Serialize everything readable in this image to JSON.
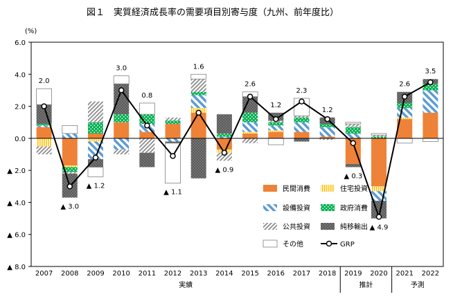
{
  "chart_data": {
    "type": "bar",
    "title": "図１　実質経済成長率の需要項目別寄与度（九州、前年度比）",
    "ylabel": "(%)",
    "ylim": [
      -8,
      6
    ],
    "yticks": [
      6,
      4,
      2,
      0,
      -2,
      -4,
      -6,
      -8
    ],
    "yticklabels": [
      "6.0",
      "4.0",
      "2.0",
      "0.0",
      "▲ 2.0",
      "▲ 4.0",
      "▲ 6.0",
      "▲ 8.0"
    ],
    "grid": false,
    "legend_position": "lower-right inside plot",
    "categories": [
      "2007",
      "2008",
      "2009",
      "2010",
      "2011",
      "2012",
      "2013",
      "2014",
      "2015",
      "2016",
      "2017",
      "2018",
      "2019",
      "2020",
      "2021",
      "2022"
    ],
    "groups": [
      {
        "label": "実績",
        "from": "2007",
        "to": "2018"
      },
      {
        "label": "推計",
        "from": "2019",
        "to": "2020"
      },
      {
        "label": "予測",
        "from": "2021",
        "to": "2022"
      }
    ],
    "series": [
      {
        "name": "民間消費",
        "key": "private",
        "color": "#ED7D31",
        "values": [
          0.7,
          -1.7,
          0.3,
          1.0,
          0.4,
          0.9,
          1.6,
          -0.7,
          0.3,
          0.4,
          0.4,
          0.1,
          -1.6,
          -3.0,
          1.2,
          1.6
        ]
      },
      {
        "name": "住宅投資",
        "key": "housing",
        "color": "#FFC000",
        "values": [
          -0.5,
          -0.1,
          -0.2,
          0.0,
          0.0,
          0.0,
          0.3,
          -0.2,
          0.1,
          0.1,
          0.0,
          0.0,
          0.0,
          -0.3,
          0.1,
          0.0
        ]
      },
      {
        "name": "設備投資",
        "key": "equipment",
        "color": "#5B9BD5",
        "values": [
          0.1,
          0.3,
          -1.1,
          -0.7,
          0.5,
          -0.2,
          0.8,
          0.1,
          0.6,
          0.3,
          0.6,
          0.6,
          0.3,
          -0.6,
          0.6,
          1.4
        ]
      },
      {
        "name": "政府消費",
        "key": "government",
        "color": "#00B050",
        "values": [
          0.1,
          -0.3,
          0.7,
          0.5,
          0.6,
          0.2,
          0.2,
          0.2,
          0.6,
          0.2,
          0.3,
          0.2,
          0.4,
          0.1,
          0.3,
          0.4
        ]
      },
      {
        "name": "公共投資",
        "key": "public",
        "color": "#A6A6A6",
        "values": [
          -0.5,
          -0.1,
          1.3,
          -0.3,
          -0.9,
          0.2,
          0.8,
          -0.5,
          -0.3,
          0.1,
          0.1,
          -0.1,
          0.2,
          0.1,
          0.0,
          0.0
        ]
      },
      {
        "name": "純移輸出",
        "key": "netexports",
        "color": "#595959",
        "values": [
          1.2,
          -1.5,
          -0.5,
          1.9,
          -0.9,
          -0.1,
          -2.5,
          1.2,
          1.0,
          0.5,
          -0.2,
          0.4,
          -0.2,
          -1.1,
          0.7,
          0.3
        ]
      },
      {
        "name": "その他",
        "key": "other",
        "color": "#ffffff",
        "values": [
          1.0,
          0.5,
          -0.6,
          0.5,
          0.7,
          -2.5,
          0.3,
          0.0,
          0.3,
          -0.4,
          1.1,
          0.0,
          0.1,
          0.1,
          -0.3,
          -0.2
        ]
      }
    ],
    "line": {
      "name": "GRP",
      "values": [
        2.0,
        -3.0,
        -1.2,
        3.0,
        0.8,
        -1.1,
        1.6,
        -0.9,
        2.6,
        1.2,
        2.3,
        1.2,
        -0.3,
        -4.9,
        2.6,
        3.5
      ],
      "labels": [
        "2.0",
        "▲ 3.0",
        "▲ 1.2",
        "3.0",
        "0.8",
        "▲ 1.1",
        "1.6",
        "▲ 0.9",
        "2.6",
        "1.2",
        "2.3",
        "1.2",
        "▲ 0.3",
        "▲ 4.9",
        "2.6",
        "3.5"
      ]
    }
  }
}
